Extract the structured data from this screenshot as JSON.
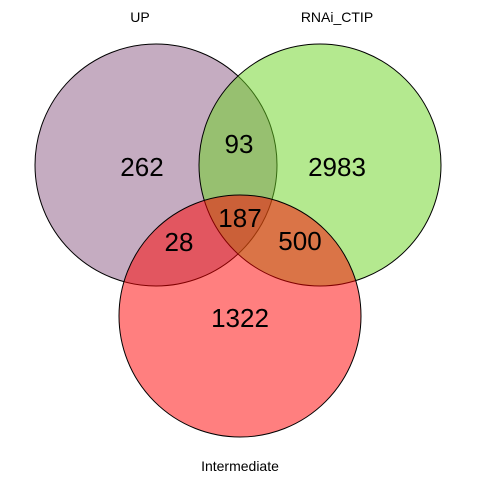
{
  "sets": [
    {
      "id": "up",
      "label": "UP",
      "color": "#8b5a83",
      "opacity": 0.5
    },
    {
      "id": "rnai",
      "label": "RNAi_CTIP",
      "color": "#6ad320",
      "opacity": 0.5
    },
    {
      "id": "intermediate",
      "label": "Intermediate",
      "color": "#ff0000",
      "opacity": 0.5
    }
  ],
  "regions": {
    "up_only": "262",
    "rnai_only": "2983",
    "intermediate_only": "1322",
    "up_rnai": "93",
    "up_intermediate": "28",
    "rnai_intermediate": "500",
    "all_three": "187"
  }
}
